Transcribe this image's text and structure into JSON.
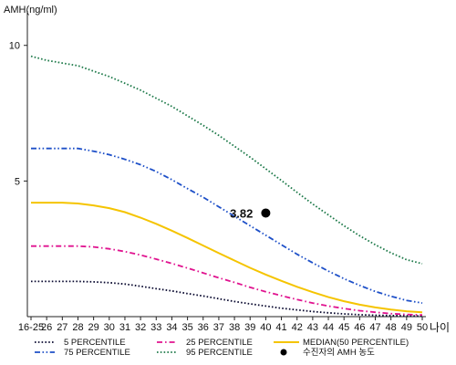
{
  "chart_data": {
    "type": "line",
    "ylabel": "AMH(ng/ml)",
    "xlabel": "나이",
    "y_ticks": [
      "5",
      "10"
    ],
    "ylim": [
      0,
      11
    ],
    "x_categories": [
      "16-25",
      "26",
      "27",
      "28",
      "29",
      "30",
      "31",
      "32",
      "33",
      "34",
      "35",
      "36",
      "37",
      "38",
      "39",
      "40",
      "41",
      "42",
      "43",
      "44",
      "45",
      "46",
      "47",
      "48",
      "49",
      "50"
    ],
    "grid": false,
    "legend_position": "bottom",
    "series": [
      {
        "name": "5 PERCENTILE",
        "color": "#0a0a30",
        "style": "dotted",
        "values": [
          1.3,
          1.3,
          1.3,
          1.3,
          1.28,
          1.25,
          1.2,
          1.12,
          1.03,
          0.95,
          0.85,
          0.76,
          0.66,
          0.56,
          0.47,
          0.39,
          0.31,
          0.25,
          0.19,
          0.14,
          0.1,
          0.07,
          0.05,
          0.04,
          0.03,
          0.02
        ]
      },
      {
        "name": "25 PERCENTILE",
        "color": "#e0138f",
        "style": "dashdot",
        "values": [
          2.6,
          2.6,
          2.6,
          2.6,
          2.57,
          2.5,
          2.4,
          2.27,
          2.12,
          1.96,
          1.79,
          1.61,
          1.43,
          1.26,
          1.08,
          0.92,
          0.77,
          0.63,
          0.5,
          0.39,
          0.3,
          0.22,
          0.16,
          0.11,
          0.08,
          0.06
        ]
      },
      {
        "name": "MEDIAN(50 PERCENTILE)",
        "color": "#f5c400",
        "style": "solid",
        "values": [
          4.2,
          4.2,
          4.2,
          4.17,
          4.1,
          4.0,
          3.85,
          3.65,
          3.42,
          3.17,
          2.9,
          2.62,
          2.34,
          2.07,
          1.8,
          1.55,
          1.32,
          1.1,
          0.9,
          0.72,
          0.57,
          0.44,
          0.34,
          0.26,
          0.2,
          0.16
        ]
      },
      {
        "name": "75 PERCENTILE",
        "color": "#1e50c8",
        "style": "dashdotdot",
        "values": [
          6.2,
          6.2,
          6.2,
          6.2,
          6.1,
          5.97,
          5.8,
          5.6,
          5.35,
          5.05,
          4.72,
          4.4,
          4.05,
          3.7,
          3.35,
          3.0,
          2.65,
          2.3,
          1.98,
          1.68,
          1.4,
          1.15,
          0.93,
          0.75,
          0.6,
          0.5
        ]
      },
      {
        "name": "95 PERCENTILE",
        "color": "#1e7a4a",
        "style": "dotted",
        "values": [
          9.6,
          9.45,
          9.35,
          9.25,
          9.05,
          8.85,
          8.6,
          8.35,
          8.05,
          7.75,
          7.4,
          7.05,
          6.68,
          6.28,
          5.88,
          5.45,
          5.02,
          4.58,
          4.15,
          3.75,
          3.35,
          2.98,
          2.65,
          2.35,
          2.1,
          1.95
        ]
      }
    ],
    "patient_point": {
      "label": "수진자의 AMH 농도",
      "x": "40",
      "y": 3.82,
      "value_label": "3.82"
    }
  },
  "legend": [
    {
      "text": "5 PERCENTILE",
      "series": 0
    },
    {
      "text": "25 PERCENTILE",
      "series": 1
    },
    {
      "text": "MEDIAN(50 PERCENTILE)",
      "series": 2
    },
    {
      "text": "75 PERCENTILE",
      "series": 3
    },
    {
      "text": "95 PERCENTILE",
      "series": 4
    },
    {
      "text": "수진자의 AMH 농도",
      "series": "point"
    }
  ]
}
